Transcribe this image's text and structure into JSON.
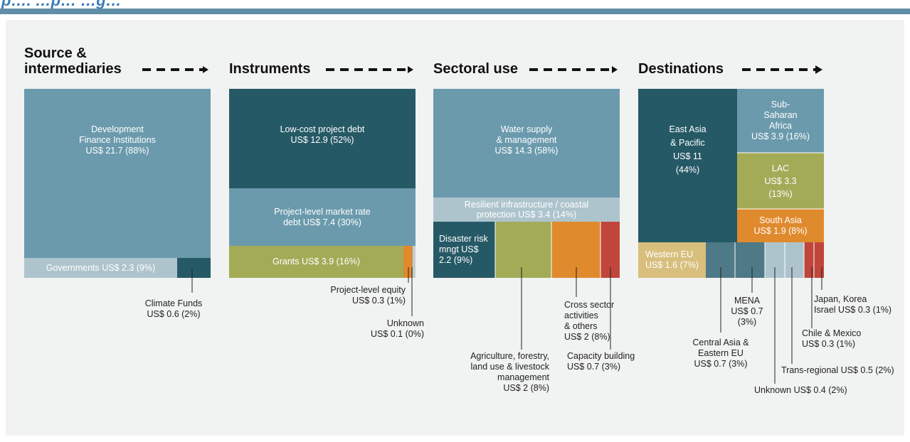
{
  "page": {
    "title_fragment": "p…. …p… …g…"
  },
  "chart_data": {
    "type": "treemap",
    "stages": [
      {
        "header": "Source & intermediaries",
        "header_lines": [
          "Source &",
          "intermediaries"
        ],
        "items": [
          {
            "label": "Development Finance Institutions",
            "value": 21.7,
            "pct": 88,
            "text": "Development\nFinance Institutions\nUS$ 21.7 (88%)",
            "color": "#6b9aad"
          },
          {
            "label": "Governments",
            "value": 2.3,
            "pct": 9,
            "text": "Governments US$ 2.3 (9%)",
            "color": "#aec4cd"
          },
          {
            "label": "Climate Funds",
            "value": 0.6,
            "pct": 2,
            "text": "Climate Funds\nUS$ 0.6 (2%)",
            "color": "#265966"
          }
        ]
      },
      {
        "header": "Instruments",
        "items": [
          {
            "label": "Low-cost project debt",
            "value": 12.9,
            "pct": 52,
            "text": "Low-cost project debt\nUS$ 12.9 (52%)",
            "color": "#265966"
          },
          {
            "label": "Project-level market rate debt",
            "value": 7.4,
            "pct": 30,
            "text": "Project-level market rate\ndebt US$ 7.4 (30%)",
            "color": "#6b9aad"
          },
          {
            "label": "Grants",
            "value": 3.9,
            "pct": 16,
            "text": "Grants US$ 3.9 (16%)",
            "color": "#a3ab57"
          },
          {
            "label": "Project-level equity",
            "value": 0.3,
            "pct": 1,
            "text": "Project-level equity\nUS$ 0.3 (1%)",
            "color": "#e08a2e"
          },
          {
            "label": "Unknown",
            "value": 0.1,
            "pct": 0,
            "text": "Unknown\nUS$ 0.1 (0%)",
            "color": "#bfd0d6"
          }
        ]
      },
      {
        "header": "Sectoral use",
        "items": [
          {
            "label": "Water supply & management",
            "value": 14.3,
            "pct": 58,
            "text": "Water supply\n& management\nUS$ 14.3 (58%)",
            "color": "#6b9aad"
          },
          {
            "label": "Resilient infrastructure / coastal protection",
            "value": 3.4,
            "pct": 14,
            "text": "Resilient infrastructure / coastal\nprotection US$ 3.4 (14%)",
            "color": "#aec4cd"
          },
          {
            "label": "Disaster risk mngt",
            "value": 2.2,
            "pct": 9,
            "text": "Disaster risk\nmngt US$\n2.2 (9%)",
            "color": "#265966"
          },
          {
            "label": "Agriculture, forestry, land use & livestock management",
            "value": 2,
            "pct": 8,
            "text": "Agriculture, forestry,\nland use & livestock\nmanagement\nUS$ 2 (8%)",
            "color": "#a3ab57"
          },
          {
            "label": "Cross sector activities & others",
            "value": 2,
            "pct": 8,
            "text": "Cross sector\nactivities\n& others\nUS$ 2 (8%)",
            "color": "#e08a2e"
          },
          {
            "label": "Capacity building",
            "value": 0.7,
            "pct": 3,
            "text": "Capacity building\nUS$ 0.7 (3%)",
            "color": "#c0463c"
          }
        ]
      },
      {
        "header": "Destinations",
        "items": [
          {
            "label": "East Asia & Pacific",
            "value": 11,
            "pct": 44,
            "text": "East Asia\n& Pacific\nUS$ 11\n(44%)",
            "color": "#265966"
          },
          {
            "label": "Sub-Saharan Africa",
            "value": 3.9,
            "pct": 16,
            "text": "Sub-\nSaharan\nAfrica\nUS$ 3.9 (16%)",
            "color": "#6b9aad"
          },
          {
            "label": "LAC",
            "value": 3.3,
            "pct": 13,
            "text": "LAC\nUS$ 3.3\n(13%)",
            "color": "#a3ab57"
          },
          {
            "label": "South Asia",
            "value": 1.9,
            "pct": 8,
            "text": "South Asia\nUS$ 1.9 (8%)",
            "color": "#e08a2e"
          },
          {
            "label": "Western EU",
            "value": 1.6,
            "pct": 7,
            "text": "Western EU\nUS$ 1.6 (7%)",
            "color": "#d8bf7e"
          },
          {
            "label": "Central Asia & Eastern EU",
            "value": 0.7,
            "pct": 3,
            "text": "Central Asia &\nEastern EU\nUS$ 0.7 (3%)",
            "color": "#4d7a86"
          },
          {
            "label": "MENA",
            "value": 0.7,
            "pct": 3,
            "text": "MENA\nUS$ 0.7\n(3%)",
            "color": "#4d7a86"
          },
          {
            "label": "Unknown",
            "value": 0.4,
            "pct": 2,
            "text": "Unknown US$ 0.4 (2%)",
            "color": "#aec4cd"
          },
          {
            "label": "Trans-regional",
            "value": 0.5,
            "pct": 2,
            "text": "Trans-regional US$ 0.5 (2%)",
            "color": "#aec4cd"
          },
          {
            "label": "Chile & Mexico",
            "value": 0.3,
            "pct": 1,
            "text": "Chile & Mexico\nUS$ 0.3 (1%)",
            "color": "#c0463c"
          },
          {
            "label": "Japan, Korea Israel",
            "value": 0.3,
            "pct": 1,
            "text": "Japan, Korea\nIsrael US$ 0.3 (1%)",
            "color": "#c0463c"
          }
        ]
      }
    ]
  }
}
